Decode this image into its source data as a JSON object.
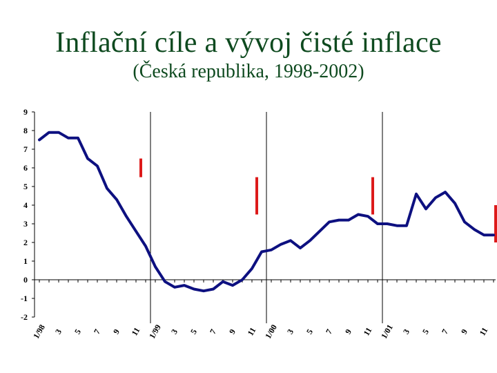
{
  "title": "Inflační cíle a vývoj čisté inflace",
  "subtitle": "(Česká republika, 1998-2002)",
  "colors": {
    "line": "#0d1080",
    "target": "#dd1a1a",
    "title": "#0e4a1f"
  },
  "chart_data": {
    "type": "line",
    "title": "Inflační cíle a vývoj čisté inflace",
    "subtitle": "(Česká republika, 1998-2002)",
    "xlabel": "",
    "ylabel": "",
    "ylim": [
      -2,
      9
    ],
    "yticks": [
      "9",
      "8",
      "7",
      "6",
      "5",
      "4",
      "3",
      "2",
      "1",
      "0",
      "-1",
      "-2"
    ],
    "x_tick_labels": [
      {
        "index": 0,
        "label": "1/98"
      },
      {
        "index": 2,
        "label": "3"
      },
      {
        "index": 4,
        "label": "5"
      },
      {
        "index": 6,
        "label": "7"
      },
      {
        "index": 8,
        "label": "9"
      },
      {
        "index": 10,
        "label": "11"
      },
      {
        "index": 12,
        "label": "1/99"
      },
      {
        "index": 14,
        "label": "3"
      },
      {
        "index": 16,
        "label": "5"
      },
      {
        "index": 18,
        "label": "7"
      },
      {
        "index": 20,
        "label": "9"
      },
      {
        "index": 22,
        "label": "11"
      },
      {
        "index": 24,
        "label": "1/00"
      },
      {
        "index": 26,
        "label": "3"
      },
      {
        "index": 28,
        "label": "5"
      },
      {
        "index": 30,
        "label": "7"
      },
      {
        "index": 32,
        "label": "9"
      },
      {
        "index": 34,
        "label": "11"
      },
      {
        "index": 36,
        "label": "1/01"
      },
      {
        "index": 38,
        "label": "3"
      },
      {
        "index": 40,
        "label": "5"
      },
      {
        "index": 42,
        "label": "7"
      },
      {
        "index": 44,
        "label": "9"
      },
      {
        "index": 46,
        "label": "11"
      }
    ],
    "year_dividers": [
      12,
      24,
      36
    ],
    "series": [
      {
        "values": [
          7.5,
          7.9,
          7.9,
          7.6,
          7.6,
          6.5,
          6.1,
          4.9,
          4.3,
          3.4,
          2.6,
          1.8,
          0.7,
          -0.1,
          -0.4,
          -0.3,
          -0.5,
          -0.6,
          -0.5,
          -0.1,
          -0.3,
          0.0,
          0.6,
          1.5,
          1.6,
          1.9,
          2.1,
          1.7,
          2.1,
          2.6,
          3.1,
          3.2,
          3.2,
          3.5,
          3.4,
          3.0,
          3.0,
          2.9,
          2.9,
          4.6,
          3.8,
          4.4,
          4.7,
          4.1,
          3.1,
          2.7,
          2.4,
          2.4
        ]
      }
    ],
    "targets": [
      {
        "x": 10.5,
        "low": 5.5,
        "high": 6.5
      },
      {
        "x": 22.5,
        "low": 3.5,
        "high": 5.5
      },
      {
        "x": 34.5,
        "low": 3.5,
        "high": 5.5
      },
      {
        "x": 47.5,
        "low": 2.0,
        "high": 4.0
      }
    ]
  }
}
